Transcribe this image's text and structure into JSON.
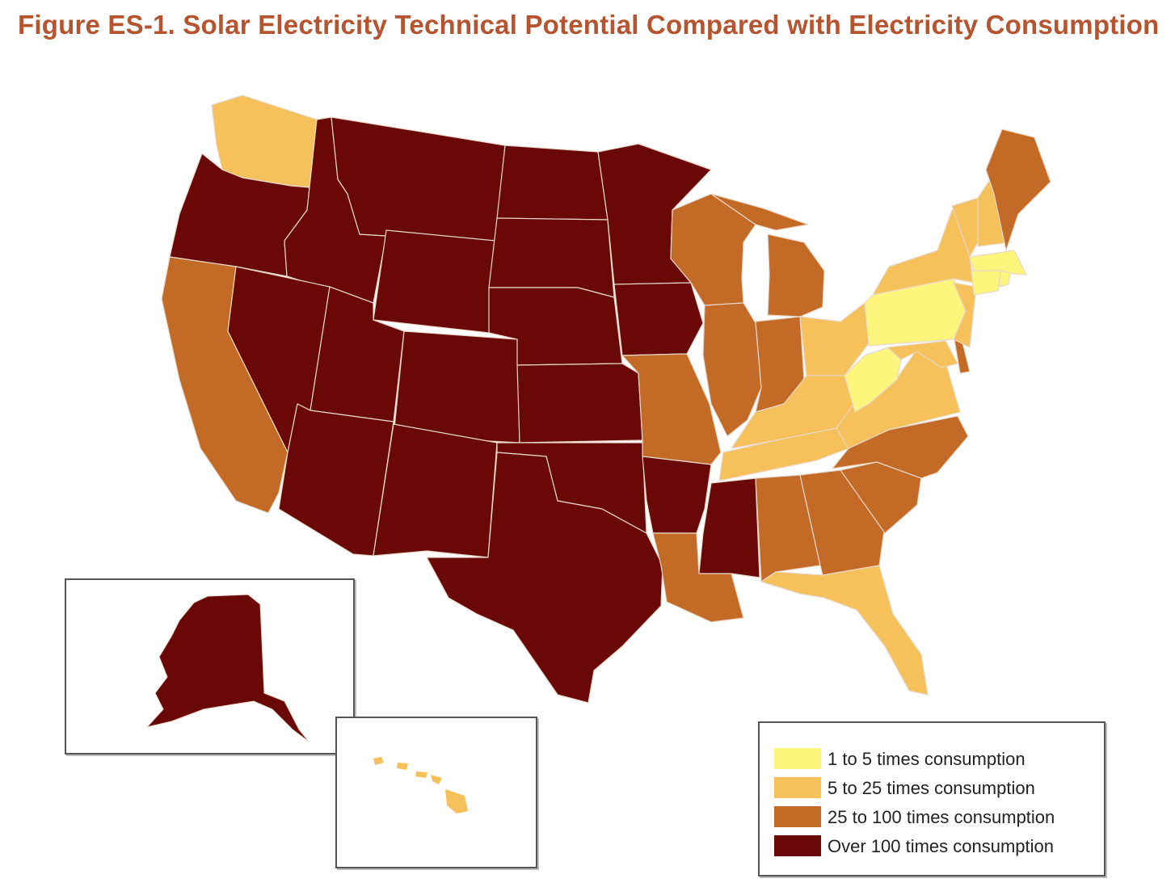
{
  "title": "Figure ES-1. Solar Electricity Technical Potential Compared with Electricity Consumption",
  "categories": {
    "c1": {
      "label": "1 to 5 times consumption",
      "color": "#fdf57c"
    },
    "c2": {
      "label": "5 to 25 times consumption",
      "color": "#f6c05a"
    },
    "c3": {
      "label": "25 to 100 times consumption",
      "color": "#c46a27"
    },
    "c4": {
      "label": "Over 100 times consumption",
      "color": "#6a0808"
    }
  },
  "legend_order": [
    "c1",
    "c2",
    "c3",
    "c4"
  ],
  "state_categories": {
    "WA": "c2",
    "OR": "c4",
    "CA": "c3",
    "ID": "c4",
    "NV": "c4",
    "MT": "c4",
    "WY": "c4",
    "UT": "c4",
    "AZ": "c4",
    "CO": "c4",
    "NM": "c4",
    "ND": "c4",
    "SD": "c4",
    "NE": "c4",
    "KS": "c4",
    "OK": "c4",
    "TX": "c4",
    "MN": "c4",
    "IA": "c4",
    "MO": "c3",
    "AR": "c4",
    "LA": "c3",
    "WI": "c3",
    "IL": "c3",
    "MI": "c3",
    "IN": "c3",
    "OH": "c2",
    "KY": "c2",
    "TN": "c2",
    "MS": "c4",
    "AL": "c3",
    "GA": "c3",
    "FL": "c2",
    "SC": "c3",
    "NC": "c3",
    "VA": "c2",
    "WV": "c1",
    "MD": "c2",
    "DE": "c3",
    "PA": "c1",
    "NJ": "c2",
    "NY": "c2",
    "CT": "c1",
    "RI": "c1",
    "MA": "c1",
    "VT": "c2",
    "NH": "c2",
    "ME": "c3",
    "AK": "c4",
    "HI": "c2"
  }
}
